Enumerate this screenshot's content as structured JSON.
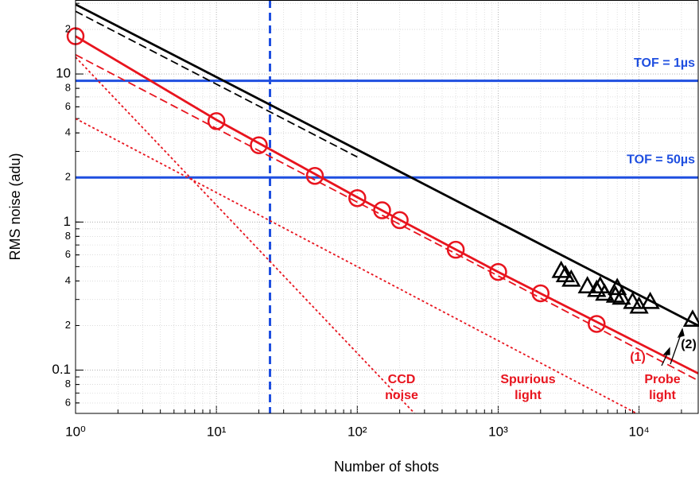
{
  "chart_data": {
    "type": "line",
    "xlabel": "Number of shots",
    "ylabel": "RMS noise (adu)",
    "xscale": "log",
    "yscale": "log",
    "grid": true,
    "minor_grid": true,
    "xlim": [
      1,
      26300
    ],
    "ylim": [
      0.051,
      31.6
    ],
    "xticks": [
      {
        "value": 1,
        "label": "10⁰"
      },
      {
        "value": 10,
        "label": "10¹"
      },
      {
        "value": 100,
        "label": "10²"
      },
      {
        "value": 1000,
        "label": "10³"
      },
      {
        "value": 10000,
        "label": "10⁴"
      }
    ],
    "yticks": [
      {
        "value": 20,
        "label": "2"
      },
      10,
      {
        "value": 8,
        "label": "8"
      },
      {
        "value": 6,
        "label": "6"
      },
      {
        "value": 4,
        "label": "4"
      },
      {
        "value": 2,
        "label": "2"
      },
      1,
      {
        "value": 0.8,
        "label": "8"
      },
      {
        "value": 0.6,
        "label": "6"
      },
      {
        "value": 0.4,
        "label": "4"
      },
      {
        "value": 0.2,
        "label": "2"
      },
      0.1,
      {
        "value": 0.08,
        "label": "8"
      },
      {
        "value": 0.06,
        "label": "6"
      }
    ],
    "series": [
      {
        "color": "#000000",
        "style": "solid",
        "x": [
          1,
          26300
        ],
        "values": [
          29.5,
          0.2
        ]
      },
      {
        "color": "#000000",
        "style": "dashed",
        "x": [
          1,
          100
        ],
        "values": [
          26.5,
          2.75
        ]
      },
      {
        "color": "#e8141e",
        "style": "solid",
        "x": [
          1,
          10,
          100,
          1000,
          26300
        ],
        "values": [
          18,
          4.9,
          1.47,
          0.46,
          0.095
        ]
      },
      {
        "color": "#e8141e",
        "style": "dashed",
        "x": [
          1,
          26300
        ],
        "values": [
          13.5,
          0.085
        ]
      },
      {
        "color": "#e8141e",
        "style": "dotted",
        "x": [
          1,
          255
        ],
        "values": [
          13,
          0.051
        ]
      },
      {
        "color": "#e8141e",
        "style": "dotted",
        "x": [
          1,
          9600
        ],
        "values": [
          5,
          0.051
        ]
      },
      {
        "color": "#e8141e",
        "style": "markers",
        "marker": "circle",
        "x": [
          1,
          10,
          20,
          50,
          100,
          150,
          200,
          500,
          1000,
          2000,
          5000
        ],
        "values": [
          18,
          4.8,
          3.3,
          2.05,
          1.45,
          1.2,
          1.03,
          0.65,
          0.46,
          0.33,
          0.205
        ]
      },
      {
        "color": "#000000",
        "style": "markers",
        "marker": "triangle",
        "x": [
          2800,
          3000,
          3300,
          4300,
          5000,
          5300,
          5700,
          6800,
          7000,
          7500,
          9000,
          10000,
          12000,
          24000
        ],
        "values": [
          0.47,
          0.44,
          0.41,
          0.37,
          0.35,
          0.37,
          0.33,
          0.32,
          0.36,
          0.31,
          0.29,
          0.27,
          0.29,
          0.22
        ]
      }
    ],
    "hlines": [
      {
        "value": 9,
        "label": "TOF = 1µs",
        "color": "#1f4fe0"
      },
      {
        "value": 2,
        "label": "TOF = 50µs",
        "color": "#1f4fe0"
      }
    ],
    "vlines": [
      {
        "value": 24,
        "color": "#1f4fe0"
      }
    ],
    "annotations": [
      {
        "text": [
          "CCD",
          "noise"
        ],
        "color": "#e8141e"
      },
      {
        "text": [
          "Spurious",
          "light"
        ],
        "color": "#e8141e"
      },
      {
        "text": [
          "Probe",
          "light"
        ],
        "color": "#e8141e"
      },
      {
        "text": [
          "(1)"
        ],
        "color": "#e8141e"
      },
      {
        "text": [
          "(2)"
        ],
        "color": "#000000"
      }
    ]
  }
}
